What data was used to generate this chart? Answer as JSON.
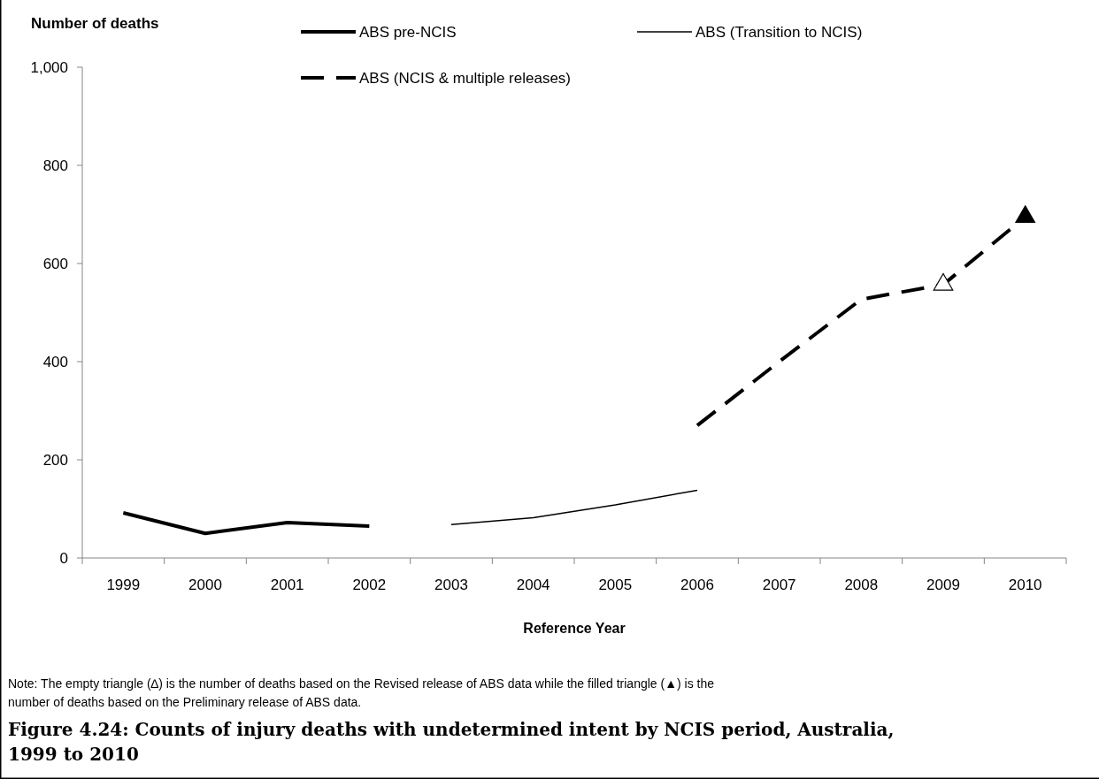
{
  "chart_data": {
    "type": "line",
    "title": "Figure 4.24: Counts of injury deaths with undetermined intent by NCIS period, Australia, 1999 to 2010",
    "xlabel": "Reference Year",
    "ylabel": "Number of deaths",
    "categories": [
      "1999",
      "2000",
      "2001",
      "2002",
      "2003",
      "2004",
      "2005",
      "2006",
      "2007",
      "2008",
      "2009",
      "2010"
    ],
    "series": [
      {
        "name": "ABS pre-NCIS",
        "color": "#000000",
        "line_style": "solid",
        "values": [
          92,
          50,
          72,
          65,
          null,
          null,
          null,
          null,
          null,
          null,
          null,
          null
        ]
      },
      {
        "name": "ABS (Transition to NCIS)",
        "color": "#000000",
        "line_style": "solid",
        "values": [
          null,
          null,
          null,
          null,
          68,
          82,
          108,
          138,
          null,
          null,
          null,
          null
        ]
      },
      {
        "name": "ABS (NCIS & multiple releases)",
        "color": "#000000",
        "line_style": "dashed",
        "values": [
          null,
          null,
          null,
          null,
          null,
          null,
          null,
          270,
          400,
          527,
          557,
          695
        ]
      },
      {
        "type": "scatter",
        "marker": "triangle",
        "color": "#ffffff",
        "values": [
          null,
          null,
          null,
          null,
          null,
          null,
          null,
          null,
          null,
          null,
          557,
          null
        ]
      },
      {
        "type": "scatter",
        "marker": "triangle",
        "color": "#000000",
        "values": [
          null,
          null,
          null,
          null,
          null,
          null,
          null,
          null,
          null,
          null,
          null,
          695
        ]
      }
    ],
    "ylim": [
      0,
      1000
    ],
    "yticks": [
      0,
      200,
      400,
      600,
      800,
      {
        "value": 1000,
        "label": "1,000"
      }
    ],
    "legend": "top",
    "marker": "none",
    "annotations": [
      "Note: The empty triangle (∆) is the number of deaths based on the Revised release of ABS data while the filled triangle (▲) is the number of deaths based on the Preliminary release of ABS data."
    ]
  }
}
